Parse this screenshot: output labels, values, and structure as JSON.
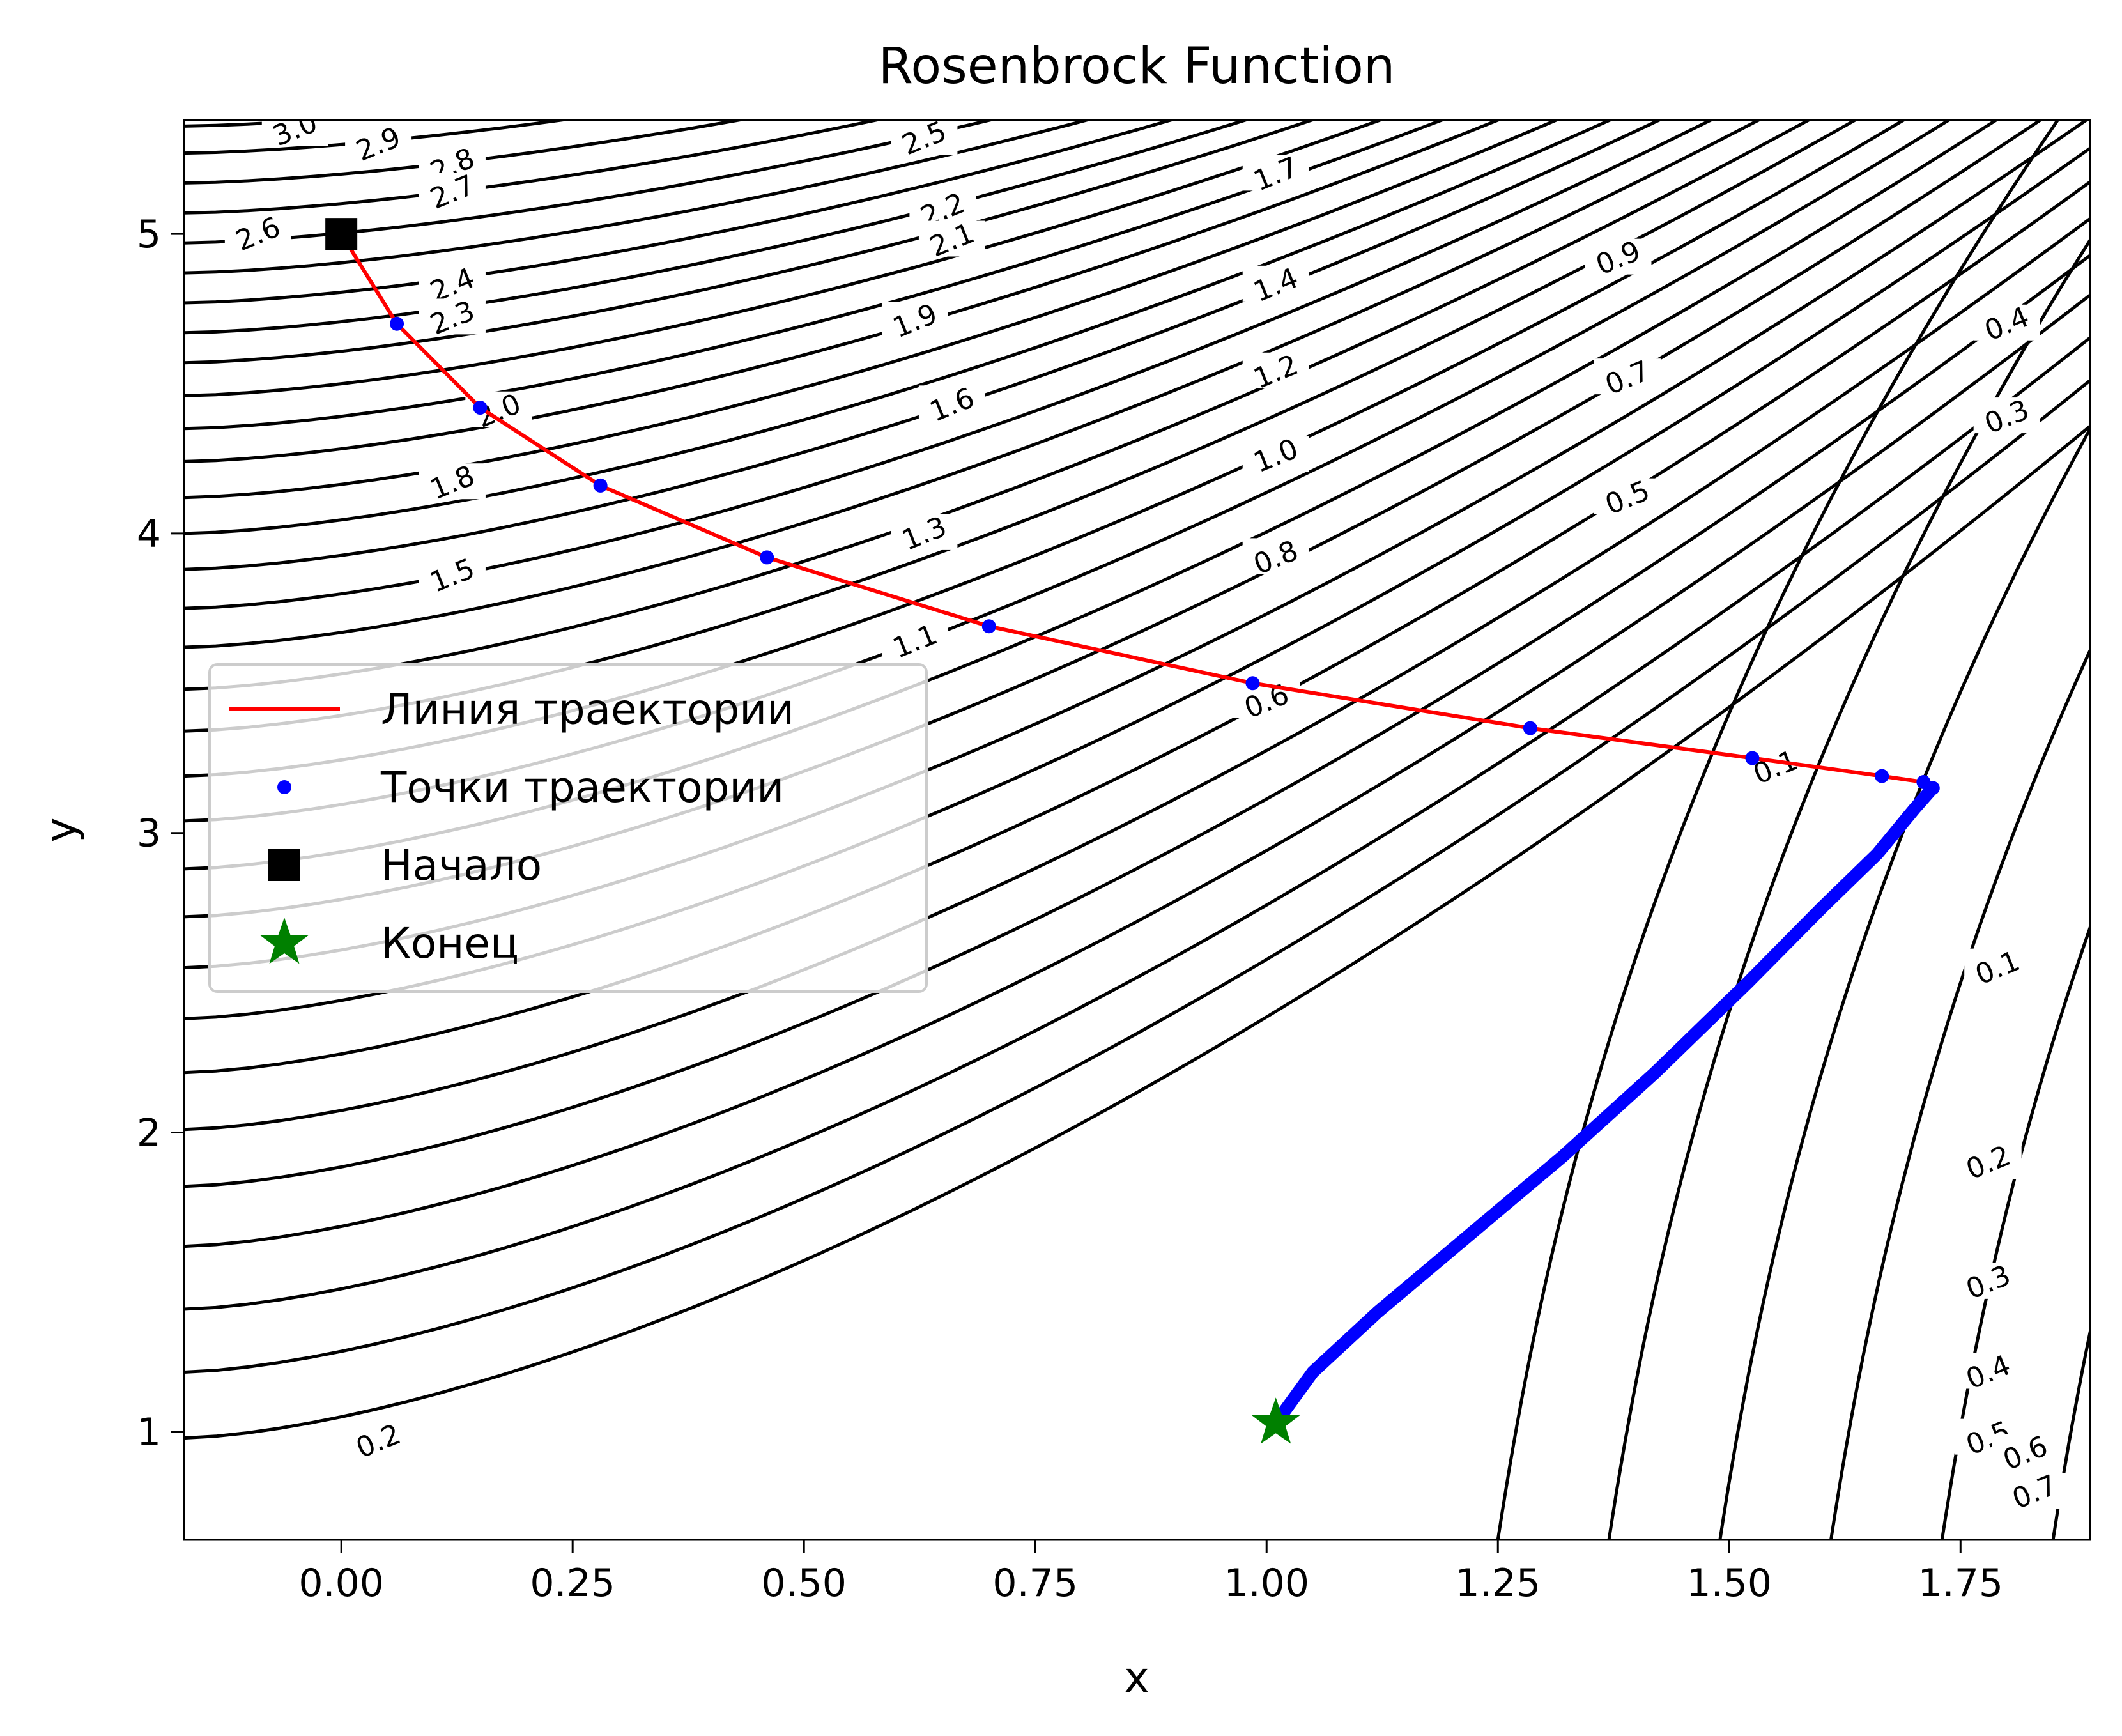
{
  "chart_data": {
    "type": "line",
    "title": "Rosenbrock Function",
    "xlabel": "x",
    "ylabel": "y",
    "xlim": [
      -0.17,
      1.89
    ],
    "ylim": [
      0.64,
      5.38
    ],
    "xticks": [
      "0.00",
      "0.25",
      "0.50",
      "0.75",
      "1.00",
      "1.25",
      "1.50",
      "1.75"
    ],
    "yticks": [
      "1",
      "2",
      "3",
      "4",
      "5"
    ],
    "grid": false,
    "legend_position": "center-left",
    "contour_labels": [
      {
        "text": "3.0",
        "x": -0.05,
        "y": 5.35
      },
      {
        "text": "2.9",
        "x": 0.04,
        "y": 5.3
      },
      {
        "text": "2.8",
        "x": 0.12,
        "y": 5.23
      },
      {
        "text": "2.7",
        "x": 0.12,
        "y": 5.14
      },
      {
        "text": "2.6",
        "x": -0.09,
        "y": 5.0
      },
      {
        "text": "2.4",
        "x": 0.12,
        "y": 4.83
      },
      {
        "text": "2.3",
        "x": 0.12,
        "y": 4.72
      },
      {
        "text": "2.0",
        "x": 0.17,
        "y": 4.41
      },
      {
        "text": "1.8",
        "x": 0.12,
        "y": 4.17
      },
      {
        "text": "1.5",
        "x": 0.12,
        "y": 3.86
      },
      {
        "text": "2.5",
        "x": 0.63,
        "y": 5.32
      },
      {
        "text": "2.2",
        "x": 0.65,
        "y": 5.08
      },
      {
        "text": "2.1",
        "x": 0.66,
        "y": 4.98
      },
      {
        "text": "1.9",
        "x": 0.62,
        "y": 4.71
      },
      {
        "text": "1.6",
        "x": 0.66,
        "y": 4.43
      },
      {
        "text": "1.3",
        "x": 0.63,
        "y": 4.0
      },
      {
        "text": "1.1",
        "x": 0.62,
        "y": 3.64
      },
      {
        "text": "1.7",
        "x": 1.01,
        "y": 5.2
      },
      {
        "text": "1.4",
        "x": 1.01,
        "y": 4.83
      },
      {
        "text": "1.2",
        "x": 1.01,
        "y": 4.54
      },
      {
        "text": "1.0",
        "x": 1.01,
        "y": 4.26
      },
      {
        "text": "0.8",
        "x": 1.01,
        "y": 3.92
      },
      {
        "text": "0.6",
        "x": 1.0,
        "y": 3.44
      },
      {
        "text": "0.9",
        "x": 1.38,
        "y": 4.92
      },
      {
        "text": "0.7",
        "x": 1.39,
        "y": 4.52
      },
      {
        "text": "0.5",
        "x": 1.39,
        "y": 4.12
      },
      {
        "text": "0.1",
        "x": 1.55,
        "y": 3.22
      },
      {
        "text": "0.4",
        "x": 1.8,
        "y": 4.7
      },
      {
        "text": "0.3",
        "x": 1.8,
        "y": 4.39
      },
      {
        "text": "0.1",
        "x": 1.79,
        "y": 2.55
      },
      {
        "text": "0.2",
        "x": 1.78,
        "y": 1.9
      },
      {
        "text": "0.3",
        "x": 1.78,
        "y": 1.5
      },
      {
        "text": "0.4",
        "x": 1.78,
        "y": 1.2
      },
      {
        "text": "0.5",
        "x": 1.78,
        "y": 0.98
      },
      {
        "text": "0.6",
        "x": 1.82,
        "y": 0.93
      },
      {
        "text": "0.7",
        "x": 1.83,
        "y": 0.8
      },
      {
        "text": "0.2",
        "x": 0.04,
        "y": 0.97
      }
    ],
    "series": [
      {
        "name": "Линия траектории",
        "color": "#ff0000",
        "style": "line",
        "x": [
          0.0,
          0.06,
          0.15,
          0.28,
          0.46,
          0.7,
          0.985,
          1.285,
          1.525,
          1.665,
          1.71,
          1.72
        ],
        "y": [
          5.0,
          4.7,
          4.42,
          4.16,
          3.92,
          3.69,
          3.5,
          3.35,
          3.25,
          3.19,
          3.17,
          3.15
        ]
      },
      {
        "name": "Точки траектории",
        "color": "#0000ff",
        "style": "markers",
        "x": [
          0.06,
          0.15,
          0.28,
          0.46,
          0.7,
          0.985,
          1.285,
          1.525,
          1.665,
          1.71,
          1.72
        ],
        "y": [
          4.7,
          4.42,
          4.16,
          3.92,
          3.69,
          3.5,
          3.35,
          3.25,
          3.19,
          3.17,
          3.15
        ],
        "dense_x": [
          1.72,
          1.7,
          1.66,
          1.6,
          1.52,
          1.42,
          1.32,
          1.22,
          1.12,
          1.05,
          1.01
        ],
        "dense_y": [
          3.15,
          3.08,
          2.93,
          2.75,
          2.5,
          2.2,
          1.92,
          1.66,
          1.4,
          1.2,
          1.03
        ]
      },
      {
        "name": "Начало",
        "color": "#000000",
        "style": "square",
        "x": [
          0.0
        ],
        "y": [
          5.0
        ]
      },
      {
        "name": "Конец",
        "color": "#008000",
        "style": "star",
        "x": [
          1.01
        ],
        "y": [
          1.03
        ]
      }
    ]
  }
}
